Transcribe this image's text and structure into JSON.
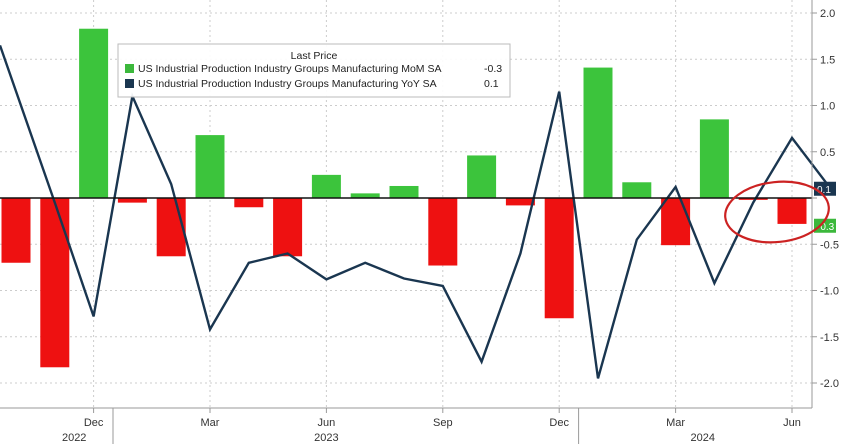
{
  "chart_data": {
    "type": "bar+line",
    "title": "",
    "xlabel": "",
    "ylabel": "",
    "ylim": [
      -2.2,
      2.2
    ],
    "y_ticks": [
      2.0,
      1.5,
      1.0,
      0.5,
      0.0,
      -0.5,
      -1.0,
      -1.5,
      -2.0
    ],
    "y_tick_labels": [
      "2.0",
      "1.5",
      "1.0",
      "0.5",
      "",
      "-0.5",
      "-1.0",
      "-1.5",
      "-2.0"
    ],
    "x": [
      "2022-10",
      "2022-11",
      "2022-12",
      "2023-01",
      "2023-02",
      "2023-03",
      "2023-04",
      "2023-05",
      "2023-06",
      "2023-07",
      "2023-08",
      "2023-09",
      "2023-10",
      "2023-11",
      "2023-12",
      "2024-01",
      "2024-02",
      "2024-03",
      "2024-04",
      "2024-05",
      "2024-06",
      "2024-07"
    ],
    "x_month_labels": [
      {
        "index": 2,
        "label": "Dec"
      },
      {
        "index": 5,
        "label": "Mar"
      },
      {
        "index": 8,
        "label": "Jun"
      },
      {
        "index": 11,
        "label": "Sep"
      },
      {
        "index": 14,
        "label": "Dec"
      },
      {
        "index": 17,
        "label": "Mar"
      },
      {
        "index": 20,
        "label": "Jun"
      }
    ],
    "x_year_labels": [
      {
        "index": 1.5,
        "label": "2022"
      },
      {
        "index": 8.0,
        "label": "2023"
      },
      {
        "index": 17.7,
        "label": "2024"
      }
    ],
    "x_year_boundaries": [
      2.5,
      14.5
    ],
    "legend": {
      "title": "Last Price",
      "placement": "top-left",
      "entries": [
        {
          "label": "US Industrial Production Industry Groups Manufacturing MoM SA",
          "value": "-0.3",
          "color": "#3cb83c"
        },
        {
          "label": "US Industrial Production Industry Groups Manufacturing YoY SA",
          "value": "0.1",
          "color": "#1a3650"
        }
      ]
    },
    "series": [
      {
        "name": "US Industrial Production Industry Groups Manufacturing MoM SA",
        "kind": "bar",
        "color_positive": "#3cc43c",
        "color_negative": "#ee1111",
        "values": [
          -0.7,
          -1.83,
          1.83,
          -0.05,
          -0.63,
          0.68,
          -0.1,
          -0.63,
          0.25,
          0.05,
          0.13,
          -0.73,
          0.46,
          -0.08,
          -1.3,
          1.41,
          0.17,
          -0.51,
          0.85,
          -0.02,
          -0.28,
          null
        ]
      },
      {
        "name": "US Industrial Production Industry Groups Manufacturing YoY SA",
        "kind": "line",
        "color": "#1a3650",
        "values": [
          1.65,
          -0.05,
          -1.28,
          1.1,
          0.15,
          -1.42,
          -0.7,
          -0.6,
          -0.88,
          -0.7,
          -0.87,
          -0.95,
          -1.77,
          -0.6,
          1.15,
          -1.95,
          -0.45,
          0.12,
          -0.92,
          -0.05,
          0.65,
          0.1
        ]
      }
    ],
    "last_value_tags": [
      {
        "value": 0.1,
        "label": "0.1",
        "color": "#1a3650"
      },
      {
        "value": -0.3,
        "label": "-0.3",
        "color": "#3cb83c"
      }
    ],
    "annotations": [
      {
        "type": "ellipse",
        "color": "#cc2222",
        "around": "last two months"
      }
    ],
    "grid": true
  }
}
